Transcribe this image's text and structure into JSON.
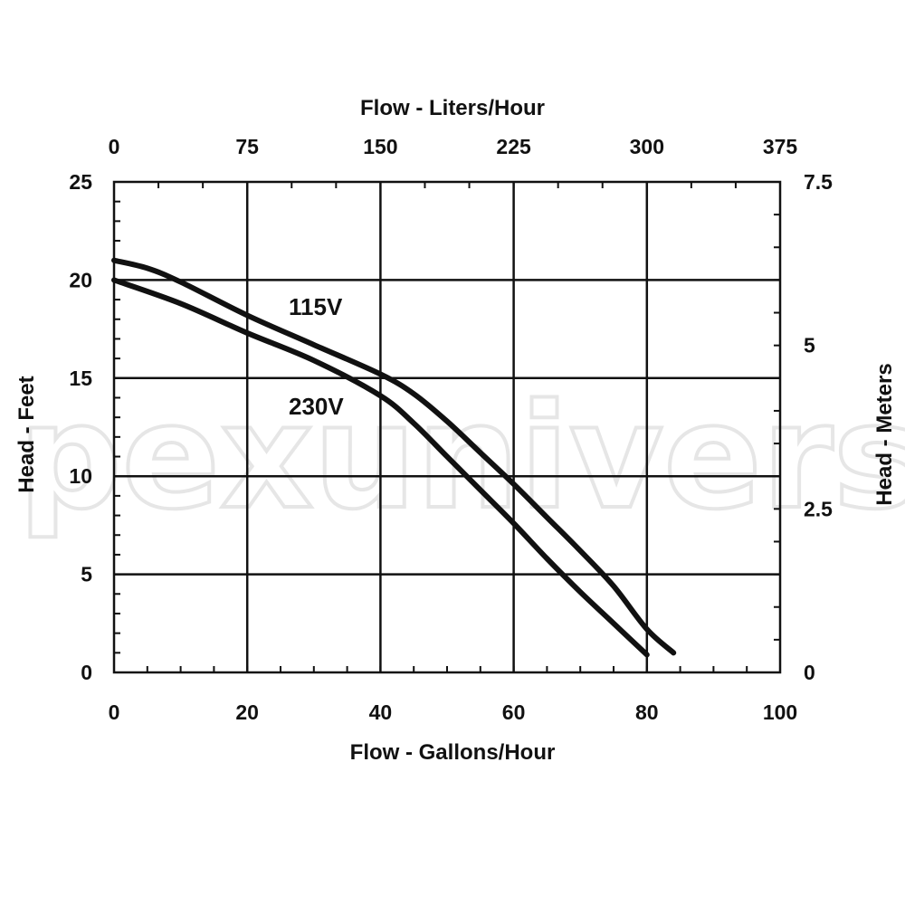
{
  "chart_data": {
    "type": "line",
    "xlabel": "Flow - Gallons/Hour",
    "x2label": "Flow - Liters/Hour",
    "ylabel": "Head - Feet",
    "y2label": "Head - Meters",
    "xlim": [
      0,
      100
    ],
    "ylim": [
      0,
      25
    ],
    "x2lim": [
      0,
      375
    ],
    "y2lim": [
      0,
      7.5
    ],
    "x_ticks": [
      "0",
      "20",
      "40",
      "60",
      "80",
      "100"
    ],
    "x2_ticks": [
      "0",
      "75",
      "150",
      "225",
      "300",
      "375"
    ],
    "y_ticks": [
      "0",
      "5",
      "10",
      "15",
      "20",
      "25"
    ],
    "y2_ticks": [
      "0",
      "2.5",
      "5",
      "7.5"
    ],
    "grid": true,
    "series": [
      {
        "name": "115V",
        "x": [
          0,
          5,
          10,
          20,
          30,
          40,
          45,
          50,
          55,
          60,
          65,
          70,
          75,
          80,
          84
        ],
        "y": [
          21,
          20.6,
          19.9,
          18.2,
          16.7,
          15.2,
          14.2,
          12.8,
          11.2,
          9.6,
          7.9,
          6.2,
          4.4,
          2.2,
          1
        ]
      },
      {
        "name": "230V",
        "x": [
          0,
          10,
          20,
          30,
          40,
          45,
          50,
          55,
          60,
          65,
          70,
          75,
          80
        ],
        "y": [
          20,
          18.8,
          17.3,
          15.9,
          14.1,
          12.7,
          11,
          9.3,
          7.6,
          5.8,
          4.1,
          2.5,
          0.9
        ]
      }
    ]
  },
  "watermark": "pexuniverse"
}
